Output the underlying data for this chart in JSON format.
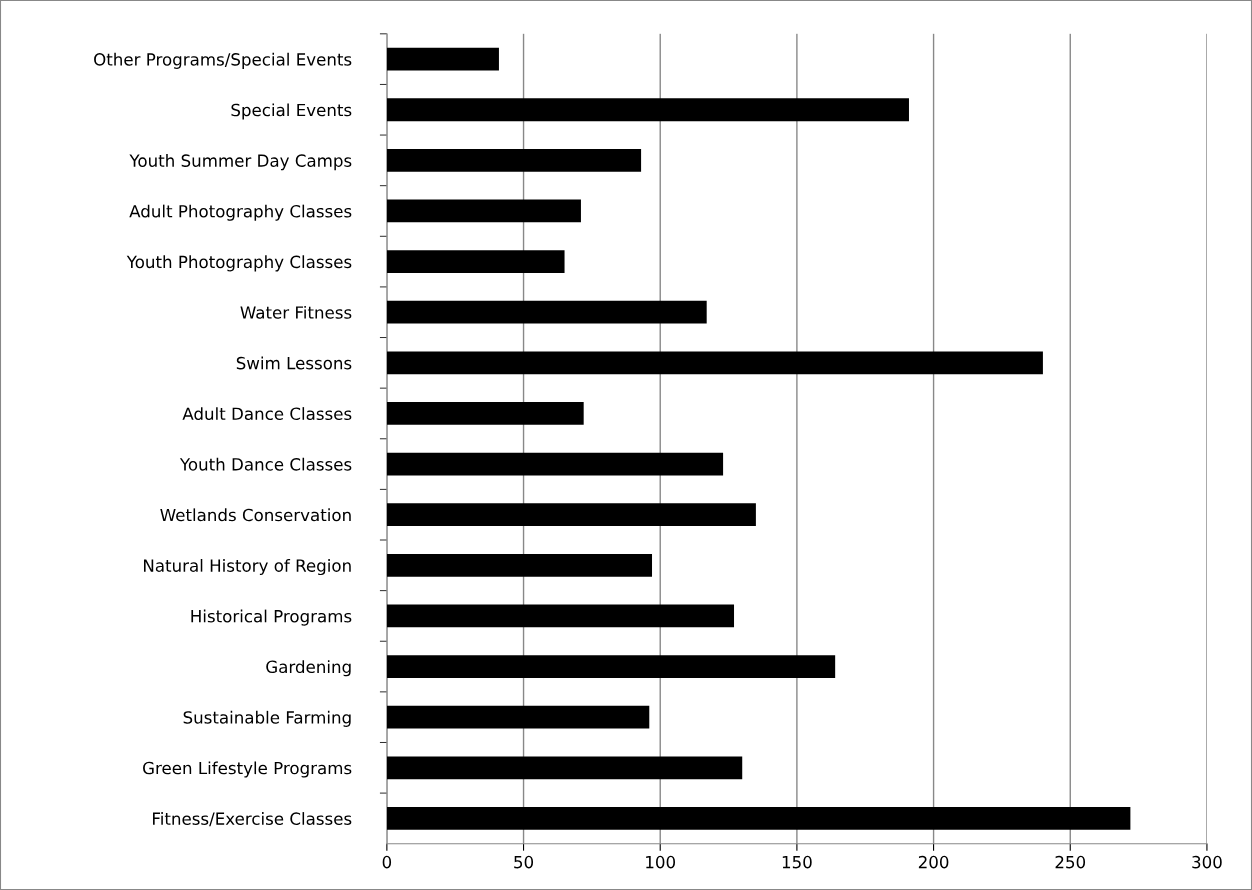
{
  "chart_data": {
    "type": "bar",
    "orientation": "horizontal",
    "categories": [
      "Other Programs/Special Events",
      "Special Events",
      "Youth Summer Day Camps",
      "Adult Photography Classes",
      "Youth Photography Classes",
      "Water Fitness",
      "Swim Lessons",
      "Adult Dance Classes",
      "Youth Dance Classes",
      "Wetlands Conservation",
      "Natural History of Region",
      "Historical Programs",
      "Gardening",
      "Sustainable Farming",
      "Green Lifestyle Programs",
      "Fitness/Exercise Classes"
    ],
    "values": [
      41,
      191,
      93,
      71,
      65,
      117,
      240,
      72,
      123,
      135,
      97,
      127,
      164,
      96,
      130,
      272
    ],
    "color": "#000000",
    "xlim": [
      0,
      300
    ],
    "xticks": [
      0,
      50,
      100,
      150,
      200,
      250,
      300
    ],
    "grid": "x",
    "legend": false
  }
}
